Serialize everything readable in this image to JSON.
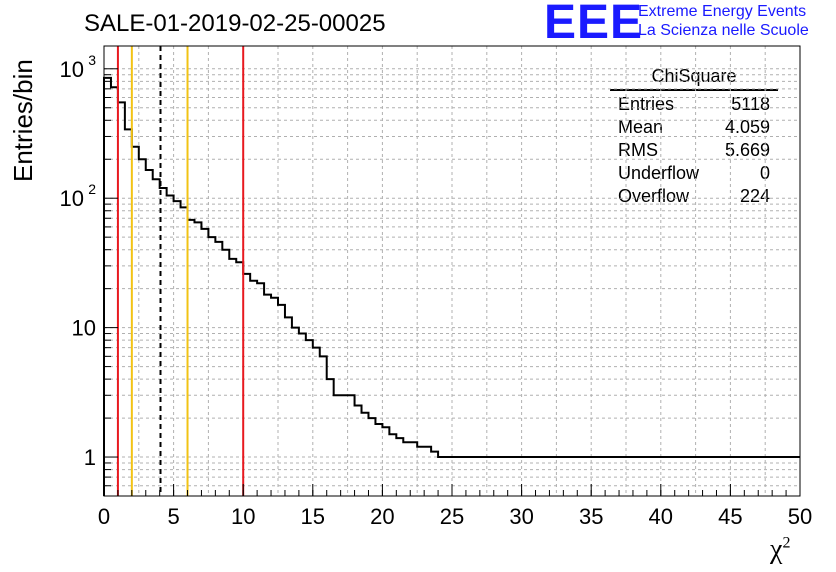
{
  "title": "SALE-01-2019-02-25-00025",
  "logo": {
    "mark": "EEE",
    "line1": "Extreme Energy Events",
    "line2": "La Scienza nelle Scuole"
  },
  "stats": {
    "title": "ChiSquare",
    "rows": [
      {
        "label": "Entries",
        "value": "5118"
      },
      {
        "label": "Mean",
        "value": "4.059"
      },
      {
        "label": "RMS",
        "value": "5.669"
      },
      {
        "label": "Underflow",
        "value": "0"
      },
      {
        "label": "Overflow",
        "value": "224"
      }
    ]
  },
  "chart_data": {
    "type": "histogram",
    "title": "SALE-01-2019-02-25-00025",
    "xlabel": "χ²",
    "ylabel": "Entries/bin",
    "xlim": [
      0,
      50
    ],
    "ylim": [
      0.5,
      1500
    ],
    "yscale": "log",
    "grid": true,
    "bin_width": 0.5,
    "x_ticks": [
      "0",
      "5",
      "10",
      "15",
      "20",
      "25",
      "30",
      "35",
      "40",
      "45",
      "50"
    ],
    "y_ticks": [
      {
        "value": 1,
        "label": "1"
      },
      {
        "value": 10,
        "label": "10"
      },
      {
        "value": 100,
        "label": "10",
        "exp": "2"
      },
      {
        "value": 1000,
        "label": "10",
        "exp": "3"
      }
    ],
    "values": [
      850,
      720,
      550,
      340,
      250,
      200,
      165,
      140,
      120,
      105,
      95,
      85,
      68,
      65,
      58,
      50,
      46,
      40,
      34,
      32,
      26,
      23,
      22,
      18,
      17,
      15,
      12,
      10,
      9,
      8,
      7,
      6,
      4,
      3,
      3,
      3,
      2.5,
      2.2,
      2,
      1.8,
      1.7,
      1.5,
      1.4,
      1.3,
      1.3,
      1.2,
      1.2,
      1.1,
      1,
      1,
      1,
      1,
      1,
      1,
      1,
      1,
      1,
      1,
      1,
      1,
      1,
      1,
      1,
      1,
      1,
      1,
      1,
      1,
      1,
      1,
      1,
      1,
      1,
      1,
      1,
      1,
      1,
      1,
      1,
      1,
      1,
      1,
      1,
      1,
      1,
      1,
      1,
      1,
      1,
      1,
      1,
      1,
      1,
      1,
      1,
      1,
      1,
      1,
      1,
      1
    ],
    "vlines": [
      {
        "x": 1,
        "color": "#e8191f",
        "style": "solid"
      },
      {
        "x": 2,
        "color": "#f2c314",
        "style": "solid"
      },
      {
        "x": 4.059,
        "color": "#000000",
        "style": "dashed"
      },
      {
        "x": 6,
        "color": "#f2c314",
        "style": "solid"
      },
      {
        "x": 10,
        "color": "#e8191f",
        "style": "solid"
      }
    ]
  }
}
